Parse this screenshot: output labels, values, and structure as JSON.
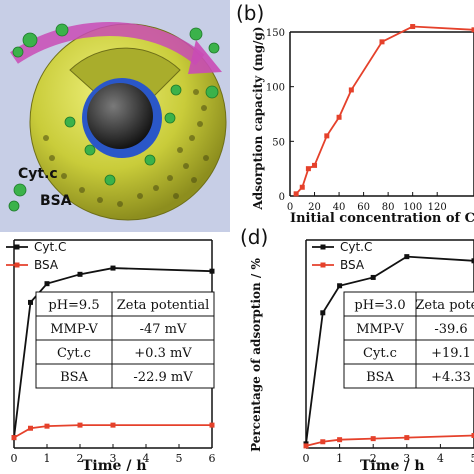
{
  "panel_a": {
    "labels": [
      "Cyt.c",
      "BSA"
    ],
    "colors": {
      "bg": "#c7cee6",
      "sphere": "#c9cc3a",
      "core": "#1a1a1a",
      "shell": "#2a57c8",
      "arrow": "#c94bb5",
      "protein": "#3bb24a"
    }
  },
  "chart_data": [
    {
      "id": "b",
      "panel_label": "(b)",
      "type": "line",
      "ylabel": "Adsorption capacity (mg/g)",
      "xlabel": "Initial concentration of Cyt. c",
      "xlim": [
        0,
        150
      ],
      "ylim": [
        0,
        150
      ],
      "xticks": [
        0,
        20,
        40,
        60,
        80,
        100,
        120
      ],
      "yticks": [
        0,
        50,
        100,
        150
      ],
      "series": [
        {
          "name": "",
          "color": "#e5412b",
          "x": [
            5,
            10,
            15,
            20,
            30,
            40,
            50,
            75,
            100,
            150
          ],
          "y": [
            2,
            8,
            25,
            28,
            55,
            72,
            97,
            141,
            155,
            152
          ]
        }
      ]
    },
    {
      "id": "c",
      "panel_label": "",
      "type": "line",
      "xlabel": "Time / h",
      "ylabel": "",
      "xlim": [
        0,
        6
      ],
      "xticks": [
        0,
        1,
        2,
        3,
        4,
        5,
        6
      ],
      "ylim": [
        0,
        100
      ],
      "series": [
        {
          "name": "Cyt.C",
          "color": "#111111",
          "x": [
            0,
            0.5,
            1,
            2,
            3,
            6
          ],
          "y": [
            5,
            70,
            79,
            83.5,
            86.5,
            85
          ]
        },
        {
          "name": "BSA",
          "color": "#e5412b",
          "x": [
            0,
            0.5,
            1,
            2,
            3,
            6
          ],
          "y": [
            5,
            9.5,
            10.5,
            11,
            11,
            11
          ]
        }
      ],
      "table": {
        "header": [
          "pH=9.5",
          "Zeta potential"
        ],
        "rows": [
          [
            "MMP-V",
            "-47 mV"
          ],
          [
            "Cyt.c",
            "+0.3 mV"
          ],
          [
            "BSA",
            "-22.9 mV"
          ]
        ]
      }
    },
    {
      "id": "d",
      "panel_label": "(d)",
      "type": "line",
      "xlabel": "Time / h",
      "ylabel": "Percentage of adsorption / %",
      "xlim": [
        0,
        5
      ],
      "xticks": [
        0,
        1,
        2,
        3,
        4,
        5
      ],
      "ylim": [
        0,
        100
      ],
      "series": [
        {
          "name": "Cyt.C",
          "color": "#111111",
          "x": [
            0,
            0.5,
            1,
            2,
            3,
            5
          ],
          "y": [
            2,
            65,
            78,
            82,
            92,
            90
          ]
        },
        {
          "name": "BSA",
          "color": "#e5412b",
          "x": [
            0,
            0.5,
            1,
            2,
            3,
            5
          ],
          "y": [
            1,
            3,
            4,
            4.5,
            5,
            6
          ]
        }
      ],
      "table": {
        "header": [
          "pH=3.0",
          "Zeta poten"
        ],
        "rows": [
          [
            "MMP-V",
            "-39.6"
          ],
          [
            "Cyt.c",
            "+19.1"
          ],
          [
            "BSA",
            "+4.33"
          ]
        ]
      }
    }
  ]
}
